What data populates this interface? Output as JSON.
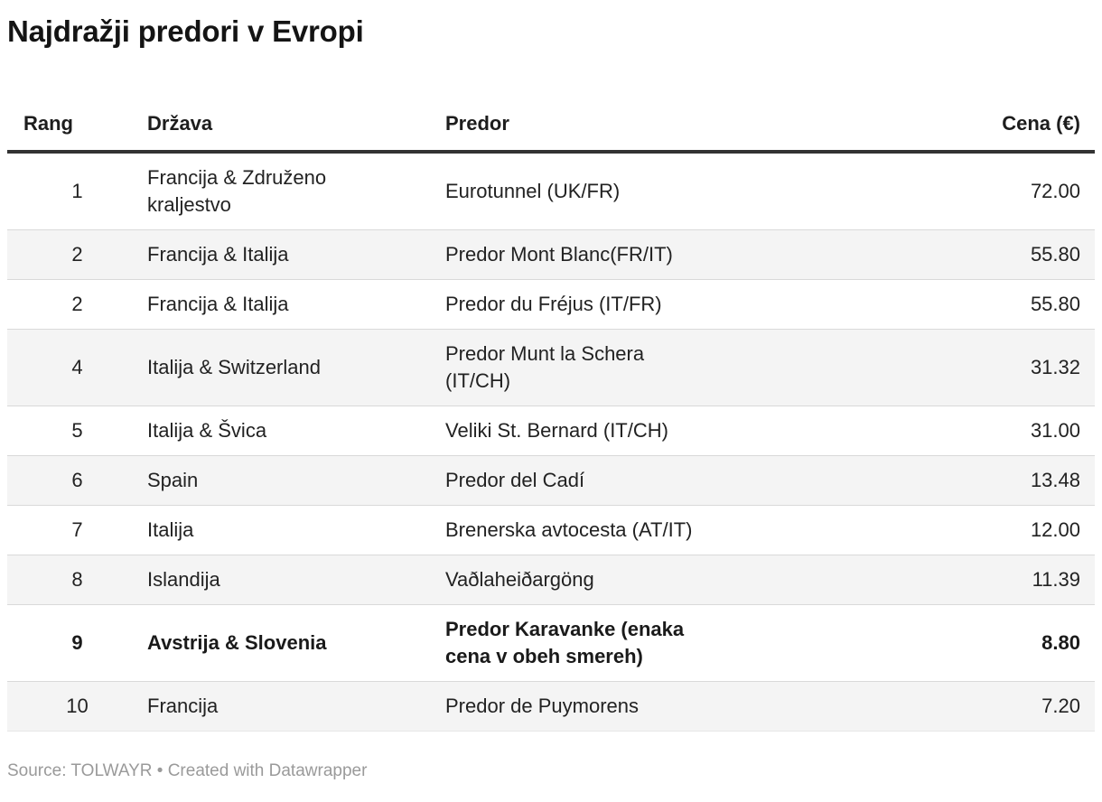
{
  "title": "Najdražji predori v Evropi",
  "table": {
    "headers": {
      "rang": "Rang",
      "drzava": "Država",
      "predor": "Predor",
      "cena": "Cena (€)"
    },
    "rows": [
      {
        "rang": "1",
        "drzava": "Francija & Združeno kraljestvo",
        "predor": "Eurotunnel (UK/FR)",
        "cena": "72.00"
      },
      {
        "rang": "2",
        "drzava": "Francija & Italija",
        "predor": "Predor Mont Blanc(FR/IT)",
        "cena": "55.80"
      },
      {
        "rang": "2",
        "drzava": "Francija & Italija",
        "predor": "Predor du Fréjus (IT/FR)",
        "cena": "55.80"
      },
      {
        "rang": "4",
        "drzava": "Italija & Switzerland",
        "predor": "Predor Munt la Schera (IT/CH)",
        "cena": "31.32"
      },
      {
        "rang": "5",
        "drzava": "Italija & Švica",
        "predor": "Veliki St. Bernard (IT/CH)",
        "cena": "31.00"
      },
      {
        "rang": "6",
        "drzava": "Spain",
        "predor": "Predor del Cadí",
        "cena": "13.48"
      },
      {
        "rang": "7",
        "drzava": "Italija",
        "predor": "Brenerska avtocesta (AT/IT)",
        "cena": "12.00"
      },
      {
        "rang": "8",
        "drzava": "Islandija",
        "predor": "Vaðlaheiðargöng",
        "cena": "11.39"
      },
      {
        "rang": "9",
        "drzava": "Avstrija & Slovenia",
        "predor": "Predor Karavanke (enaka cena v obeh smereh)",
        "cena": "8.80"
      },
      {
        "rang": "10",
        "drzava": "Francija",
        "predor": "Predor de Puymorens",
        "cena": "7.20"
      }
    ],
    "emphasized_row_index": 8
  },
  "footer": {
    "text": "Source: TOLWAYR • Created with Datawrapper"
  },
  "colors": {
    "title_text": "#141414",
    "body_text": "#222222",
    "header_rule": "#333333",
    "zebra_row": "#f4f4f4",
    "row_separator": "#d9d9d9",
    "footer_text": "#9a9a9a",
    "background": "#ffffff"
  },
  "chart_data": {
    "type": "table",
    "title": "Najdražji predori v Evropi",
    "columns": [
      "Rang",
      "Država",
      "Predor",
      "Cena (€)"
    ],
    "rows": [
      [
        1,
        "Francija & Združeno kraljestvo",
        "Eurotunnel (UK/FR)",
        72.0
      ],
      [
        2,
        "Francija & Italija",
        "Predor Mont Blanc(FR/IT)",
        55.8
      ],
      [
        2,
        "Francija & Italija",
        "Predor du Fréjus (IT/FR)",
        55.8
      ],
      [
        4,
        "Italija & Switzerland",
        "Predor Munt la Schera (IT/CH)",
        31.32
      ],
      [
        5,
        "Italija & Švica",
        "Veliki St. Bernard (IT/CH)",
        31.0
      ],
      [
        6,
        "Spain",
        "Predor del Cadí",
        13.48
      ],
      [
        7,
        "Italija",
        "Brenerska avtocesta (AT/IT)",
        12.0
      ],
      [
        8,
        "Islandija",
        "Vaðlaheiðargöng",
        11.39
      ],
      [
        9,
        "Avstrija & Slovenia",
        "Predor Karavanke (enaka cena v obeh smereh)",
        8.8
      ],
      [
        10,
        "Francija",
        "Predor de Puymorens",
        7.2
      ]
    ],
    "notes": "Zebra-striped Datawrapper table; row 9 (Predor Karavanke) rendered bold; prices right-aligned; rank centered."
  }
}
